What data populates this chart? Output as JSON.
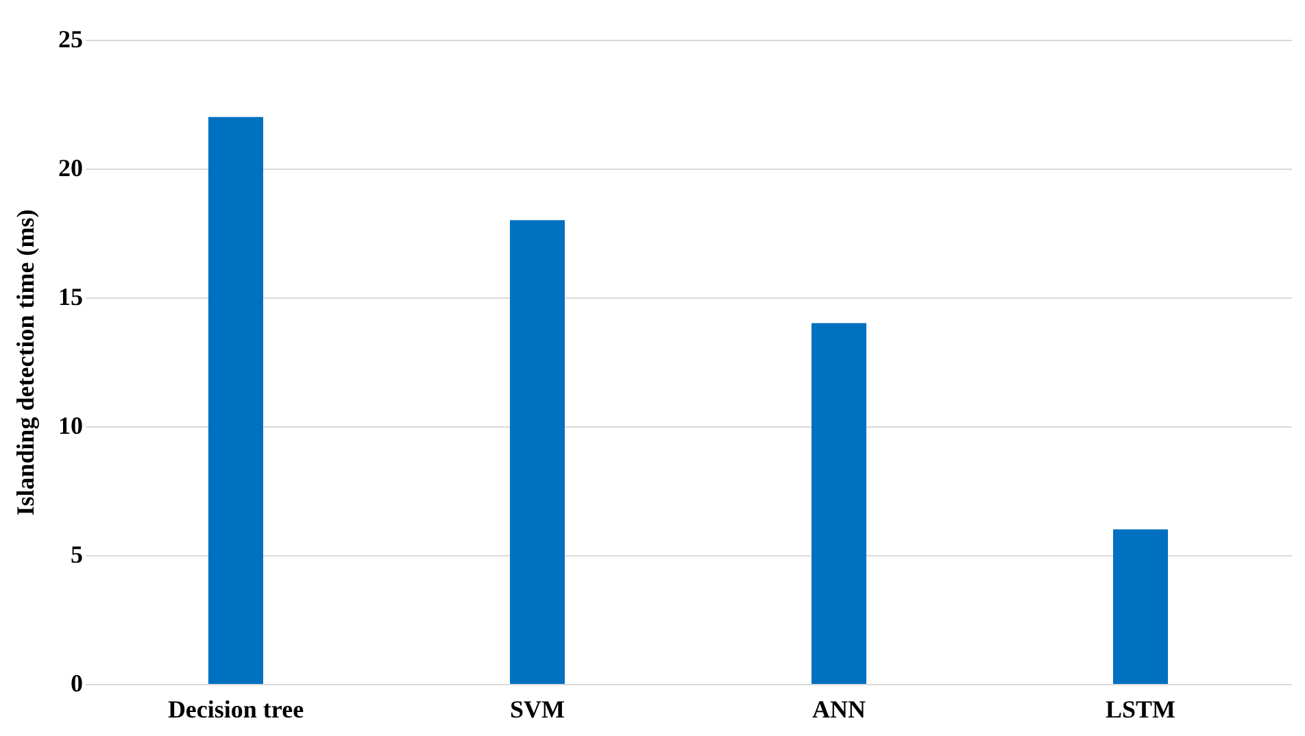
{
  "chart_data": {
    "type": "bar",
    "ylabel": "Islanding detection time (ms)",
    "categories": [
      "Decision tree",
      "SVM",
      "ANN",
      "LSTM"
    ],
    "series": [
      {
        "color": "#0070c0",
        "values": [
          22,
          18,
          14,
          6
        ]
      }
    ],
    "ylim": [
      0,
      25
    ],
    "yticks": [
      0,
      5,
      10,
      15,
      20,
      25
    ],
    "grid": "y"
  }
}
